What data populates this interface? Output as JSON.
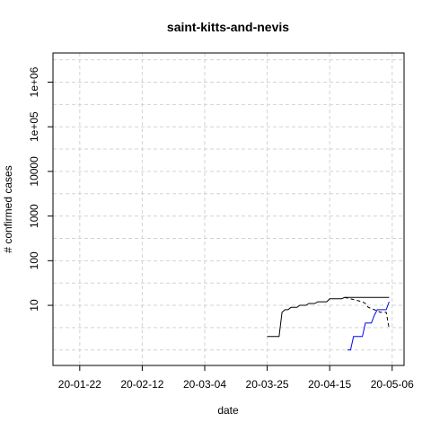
{
  "chart_data": {
    "type": "line",
    "title": "saint-kitts-and-nevis",
    "xlabel": "date",
    "ylabel": "# confirmed cases",
    "log_y": true,
    "grid": true,
    "xlim": [
      "2020-01-13",
      "2020-05-10"
    ],
    "ylim": [
      0.45,
      4500000
    ],
    "x_ticks": [
      {
        "date": "2020-01-22",
        "label": "20-01-22"
      },
      {
        "date": "2020-02-12",
        "label": "20-02-12"
      },
      {
        "date": "2020-03-04",
        "label": "20-03-04"
      },
      {
        "date": "2020-03-25",
        "label": "20-03-25"
      },
      {
        "date": "2020-04-15",
        "label": "20-04-15"
      },
      {
        "date": "2020-05-06",
        "label": "20-05-06"
      }
    ],
    "y_ticks": [
      {
        "value": 10,
        "label": "10"
      },
      {
        "value": 100,
        "label": "100"
      },
      {
        "value": 1000,
        "label": "1000"
      },
      {
        "value": 10000,
        "label": "10000"
      },
      {
        "value": 100000,
        "label": "1e+05"
      },
      {
        "value": 1000000,
        "label": "1e+06"
      }
    ],
    "series": [
      {
        "key": "confirmed",
        "color": "#000000",
        "dash": "solid",
        "points": [
          [
            "2020-03-25",
            2
          ],
          [
            "2020-03-29",
            2
          ],
          [
            "2020-03-30",
            7
          ],
          [
            "2020-03-31",
            8
          ],
          [
            "2020-04-01",
            8
          ],
          [
            "2020-04-02",
            9
          ],
          [
            "2020-04-04",
            9
          ],
          [
            "2020-04-05",
            10
          ],
          [
            "2020-04-07",
            10
          ],
          [
            "2020-04-08",
            11
          ],
          [
            "2020-04-10",
            11
          ],
          [
            "2020-04-11",
            12
          ],
          [
            "2020-04-14",
            12
          ],
          [
            "2020-04-15",
            14
          ],
          [
            "2020-04-19",
            14
          ],
          [
            "2020-04-20",
            15
          ],
          [
            "2020-05-05",
            15
          ]
        ]
      },
      {
        "key": "active",
        "color": "#000000",
        "dash": "dashed",
        "points": [
          [
            "2020-04-20",
            15
          ],
          [
            "2020-04-22",
            14
          ],
          [
            "2020-04-24",
            13
          ],
          [
            "2020-04-26",
            12
          ],
          [
            "2020-04-27",
            11
          ],
          [
            "2020-04-28",
            9
          ],
          [
            "2020-04-30",
            8
          ],
          [
            "2020-05-02",
            7
          ],
          [
            "2020-05-04",
            7
          ],
          [
            "2020-05-05",
            3
          ]
        ]
      },
      {
        "key": "recovered",
        "color": "#0000ff",
        "dash": "solid",
        "points": [
          [
            "2020-04-21",
            1
          ],
          [
            "2020-04-22",
            1
          ],
          [
            "2020-04-23",
            2
          ],
          [
            "2020-04-26",
            2
          ],
          [
            "2020-04-27",
            4
          ],
          [
            "2020-04-29",
            4
          ],
          [
            "2020-04-30",
            6
          ],
          [
            "2020-05-01",
            8
          ],
          [
            "2020-05-04",
            8
          ],
          [
            "2020-05-05",
            12
          ]
        ]
      }
    ]
  }
}
